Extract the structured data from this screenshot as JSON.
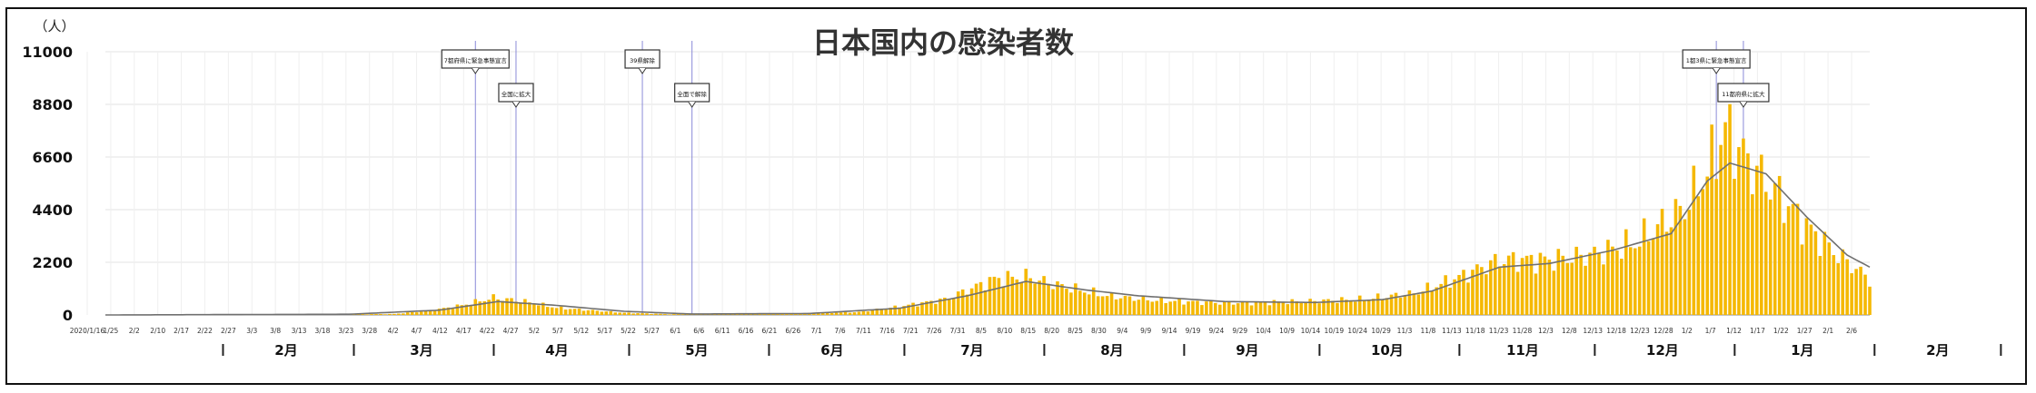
{
  "chart_data": {
    "type": "bar",
    "title": "日本国内の感染者数",
    "y_unit_label": "（人）",
    "ylim": [
      0,
      11000
    ],
    "y_ticks": [
      "0",
      "2200",
      "4400",
      "6600",
      "8800",
      "11000"
    ],
    "x_start_date": "2020-01-16",
    "x_end_date": "2021-02-10",
    "date_tick_labels": [
      "2020/1/16",
      "1/25",
      "2/2",
      "2/10",
      "2/17",
      "2/22",
      "2/27",
      "3/3",
      "3/8",
      "3/13",
      "3/18",
      "3/23",
      "3/28",
      "4/2",
      "4/7",
      "4/12",
      "4/17",
      "4/22",
      "4/27",
      "5/2",
      "5/7",
      "5/12",
      "5/17",
      "5/22",
      "5/27",
      "6/1",
      "6/6",
      "6/11",
      "6/16",
      "6/21",
      "6/26",
      "7/1",
      "7/6",
      "7/11",
      "7/16",
      "7/21",
      "7/26",
      "7/31",
      "8/5",
      "8/10",
      "8/15",
      "8/20",
      "8/25",
      "8/30",
      "9/4",
      "9/9",
      "9/14",
      "9/19",
      "9/24",
      "9/29",
      "10/4",
      "10/9",
      "10/14",
      "10/19",
      "10/24",
      "10/29",
      "11/3",
      "11/8",
      "11/13",
      "11/18",
      "11/23",
      "11/28",
      "12/3",
      "12/8",
      "12/13",
      "12/18",
      "12/23",
      "12/28",
      "1/2",
      "1/7",
      "1/12",
      "1/17",
      "1/22",
      "1/27",
      "2/1",
      "2/6"
    ],
    "month_labels": [
      {
        "label": "2月",
        "date": "2020-02-15"
      },
      {
        "label": "3月",
        "date": "2020-03-16"
      },
      {
        "label": "4月",
        "date": "2020-04-15"
      },
      {
        "label": "5月",
        "date": "2020-05-16"
      },
      {
        "label": "6月",
        "date": "2020-06-15"
      },
      {
        "label": "7月",
        "date": "2020-07-16"
      },
      {
        "label": "8月",
        "date": "2020-08-16"
      },
      {
        "label": "9月",
        "date": "2020-09-15"
      },
      {
        "label": "10月",
        "date": "2020-10-16"
      },
      {
        "label": "11月",
        "date": "2020-11-15"
      },
      {
        "label": "12月",
        "date": "2020-12-16"
      },
      {
        "label": "1月",
        "date": "2021-01-16"
      },
      {
        "label": "2月",
        "date": "2021-02-15"
      }
    ],
    "month_boundaries": [
      "2020-02-01",
      "2020-03-01",
      "2020-04-01",
      "2020-05-01",
      "2020-06-01",
      "2020-07-01",
      "2020-08-01",
      "2020-09-01",
      "2020-10-01",
      "2020-11-01",
      "2020-12-01",
      "2021-01-01",
      "2021-02-01",
      "2021-03-01"
    ],
    "daily_cases_keypoints": [
      [
        "2020-01-16",
        0
      ],
      [
        "2020-02-25",
        10
      ],
      [
        "2020-03-20",
        40
      ],
      [
        "2020-03-28",
        180
      ],
      [
        "2020-04-04",
        400
      ],
      [
        "2020-04-11",
        720
      ],
      [
        "2020-04-18",
        560
      ],
      [
        "2020-04-25",
        300
      ],
      [
        "2020-05-02",
        200
      ],
      [
        "2020-05-10",
        90
      ],
      [
        "2020-05-20",
        30
      ],
      [
        "2020-06-01",
        40
      ],
      [
        "2020-06-20",
        70
      ],
      [
        "2020-07-01",
        120
      ],
      [
        "2020-07-10",
        350
      ],
      [
        "2020-07-20",
        650
      ],
      [
        "2020-07-31",
        1500
      ],
      [
        "2020-08-07",
        1600
      ],
      [
        "2020-08-15",
        1200
      ],
      [
        "2020-08-25",
        800
      ],
      [
        "2020-09-05",
        600
      ],
      [
        "2020-09-20",
        500
      ],
      [
        "2020-10-05",
        550
      ],
      [
        "2020-10-20",
        650
      ],
      [
        "2020-11-01",
        900
      ],
      [
        "2020-11-10",
        1500
      ],
      [
        "2020-11-20",
        2300
      ],
      [
        "2020-12-01",
        2300
      ],
      [
        "2020-12-10",
        2500
      ],
      [
        "2020-12-20",
        3000
      ],
      [
        "2020-12-31",
        4500
      ],
      [
        "2021-01-05",
        6000
      ],
      [
        "2021-01-09",
        7800
      ],
      [
        "2021-01-14",
        6400
      ],
      [
        "2021-01-20",
        5200
      ],
      [
        "2021-01-27",
        3700
      ],
      [
        "2021-02-03",
        2500
      ],
      [
        "2021-02-10",
        1500
      ]
    ],
    "moving_average_keypoints": [
      [
        "2020-01-16",
        0
      ],
      [
        "2020-03-10",
        30
      ],
      [
        "2020-03-30",
        200
      ],
      [
        "2020-04-12",
        560
      ],
      [
        "2020-04-25",
        400
      ],
      [
        "2020-05-10",
        150
      ],
      [
        "2020-05-25",
        40
      ],
      [
        "2020-06-20",
        60
      ],
      [
        "2020-07-10",
        280
      ],
      [
        "2020-07-25",
        800
      ],
      [
        "2020-08-07",
        1400
      ],
      [
        "2020-08-20",
        1050
      ],
      [
        "2020-09-01",
        800
      ],
      [
        "2020-09-20",
        560
      ],
      [
        "2020-10-10",
        520
      ],
      [
        "2020-10-25",
        640
      ],
      [
        "2020-11-05",
        1000
      ],
      [
        "2020-11-20",
        2000
      ],
      [
        "2020-12-01",
        2150
      ],
      [
        "2020-12-15",
        2700
      ],
      [
        "2020-12-28",
        3400
      ],
      [
        "2021-01-05",
        5600
      ],
      [
        "2021-01-10",
        6350
      ],
      [
        "2021-01-18",
        5900
      ],
      [
        "2021-01-27",
        4100
      ],
      [
        "2021-02-05",
        2500
      ],
      [
        "2021-02-10",
        2000
      ]
    ],
    "annotations": [
      {
        "label": "7都府県に緊急事態宣言",
        "date": "2020-04-07",
        "row": 1
      },
      {
        "label": "全国に拡大",
        "date": "2020-04-16",
        "row": 2
      },
      {
        "label": "39県解除",
        "date": "2020-05-14",
        "row": 1
      },
      {
        "label": "全面で解除",
        "date": "2020-05-25",
        "row": 2
      },
      {
        "label": "1都3県に緊急事態宣言",
        "date": "2021-01-07",
        "row": 1
      },
      {
        "label": "11都府県に拡大",
        "date": "2021-01-13",
        "row": 2
      }
    ],
    "colors": {
      "bars": "#F5B800",
      "line": "#707070",
      "marker_lines": "#8a8ad8",
      "grid": "#e3e3e3"
    },
    "grid": true
  }
}
